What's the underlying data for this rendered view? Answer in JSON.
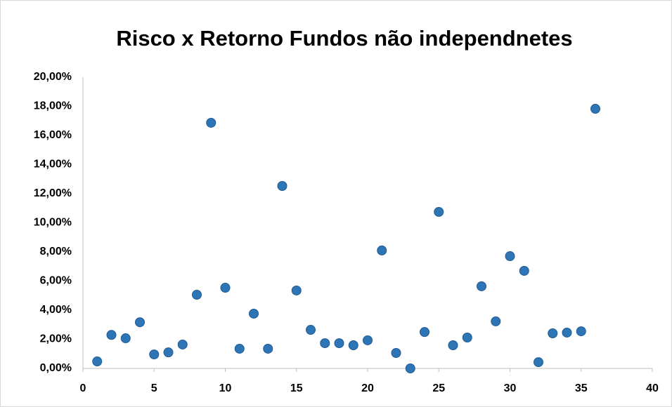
{
  "chart_data": {
    "type": "scatter",
    "title": "Risco x Retorno Fundos não independnetes",
    "x": [
      1,
      2,
      3,
      4,
      5,
      6,
      7,
      8,
      9,
      10,
      11,
      12,
      13,
      14,
      15,
      16,
      17,
      18,
      19,
      20,
      21,
      22,
      23,
      24,
      25,
      26,
      27,
      28,
      29,
      30,
      31,
      32,
      33,
      34,
      35,
      36
    ],
    "values": [
      0.48,
      2.3,
      2.07,
      3.17,
      0.96,
      1.1,
      1.64,
      5.06,
      16.87,
      5.54,
      1.35,
      3.76,
      1.35,
      12.53,
      5.35,
      2.65,
      1.73,
      1.73,
      1.59,
      1.93,
      8.1,
      1.06,
      0,
      2.5,
      10.75,
      1.59,
      2.12,
      5.64,
      3.23,
      7.71,
      6.7,
      0.43,
      2.41,
      2.46,
      2.55,
      17.83
    ],
    "color": "#2e75b6",
    "xlim": [
      0,
      40
    ],
    "xticks": [
      0,
      5,
      10,
      15,
      20,
      25,
      30,
      35,
      40
    ],
    "ylim": [
      0,
      20
    ],
    "yticks": [
      {
        "value": 0,
        "label": "0,00%"
      },
      {
        "value": 2,
        "label": "2,00%"
      },
      {
        "value": 4,
        "label": "4,00%"
      },
      {
        "value": 6,
        "label": "6,00%"
      },
      {
        "value": 8,
        "label": "8,00%"
      },
      {
        "value": 10,
        "label": "10,00%"
      },
      {
        "value": 12,
        "label": "12,00%"
      },
      {
        "value": 14,
        "label": "14,00%"
      },
      {
        "value": 16,
        "label": "16,00%"
      },
      {
        "value": 18,
        "label": "18,00%"
      },
      {
        "value": 20,
        "label": "20,00%"
      }
    ],
    "grid": false
  }
}
